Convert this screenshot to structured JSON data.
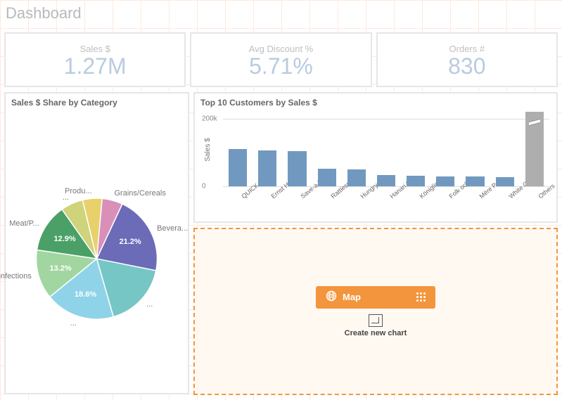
{
  "page": {
    "title": "Dashboard",
    "grid_color": "#fde9df",
    "background": "#ffffff"
  },
  "kpi": {
    "card_border": "#e6e6e6",
    "label_color": "#bfbfbf",
    "value_color": "#b9cbe0",
    "items": [
      {
        "label": "Sales $",
        "value": "1.27M"
      },
      {
        "label": "Avg Discount %",
        "value": "5.71%"
      },
      {
        "label": "Orders #",
        "value": "830"
      }
    ]
  },
  "pie_chart": {
    "title": "Sales $ Share by Category",
    "type": "pie",
    "center_r": 86,
    "background": "#ffffff",
    "label_color": "#777777",
    "pct_text_color": "#ffffff",
    "slices": [
      {
        "label": "Bevera...",
        "pct": 21.2,
        "color": "#6b6bb8",
        "show_pct": true
      },
      {
        "label": "...",
        "pct": 17.4,
        "color": "#77c6c6",
        "show_pct": false
      },
      {
        "label": "...",
        "pct": 18.6,
        "color": "#8fd3e8",
        "show_pct": true,
        "full_label": ""
      },
      {
        "label": "Confections",
        "pct": 13.2,
        "color": "#a1d6a1",
        "show_pct": true
      },
      {
        "label": "Meat/P...",
        "pct": 12.9,
        "color": "#4aa066",
        "show_pct": true
      },
      {
        "label": "...",
        "pct": 6.0,
        "color": "#cfd37a",
        "show_pct": false
      },
      {
        "label": "Produ...",
        "pct": 5.2,
        "color": "#e8d06b",
        "show_pct": false
      },
      {
        "label": "Grains/Cereals",
        "pct": 5.5,
        "color": "#d98fb8",
        "show_pct": false
      }
    ]
  },
  "bar_chart": {
    "title": "Top 10 Customers by Sales $",
    "type": "bar",
    "y_label": "Sales $",
    "ylim": [
      0,
      220
    ],
    "yticks": [
      0,
      200
    ],
    "ytick_labels": [
      "0",
      "200k"
    ],
    "bar_color": "#7199bf",
    "others_color": "#aeaeae",
    "grid_color": "#dddddd",
    "label_color": "#777777",
    "bars": [
      {
        "label": "QUICK-St...",
        "value": 110
      },
      {
        "label": "Ernst Han...",
        "value": 105
      },
      {
        "label": "Save-a-lo...",
        "value": 104
      },
      {
        "label": "Rattlesna...",
        "value": 52
      },
      {
        "label": "Hungry O...",
        "value": 50
      },
      {
        "label": "Hanari Ca...",
        "value": 34
      },
      {
        "label": "Königlich...",
        "value": 31
      },
      {
        "label": "Folk och f...",
        "value": 30
      },
      {
        "label": "Mère Paill...",
        "value": 29
      },
      {
        "label": "White Clo...",
        "value": 28
      },
      {
        "label": "Others",
        "value": 220,
        "others": true,
        "broken": true
      }
    ]
  },
  "drop_zone": {
    "border_color": "#f3953c",
    "background": "#fff9f2",
    "chip": {
      "label": "Map",
      "bg": "#f3953c",
      "fg": "#ffffff"
    },
    "create_label": "Create new chart"
  }
}
